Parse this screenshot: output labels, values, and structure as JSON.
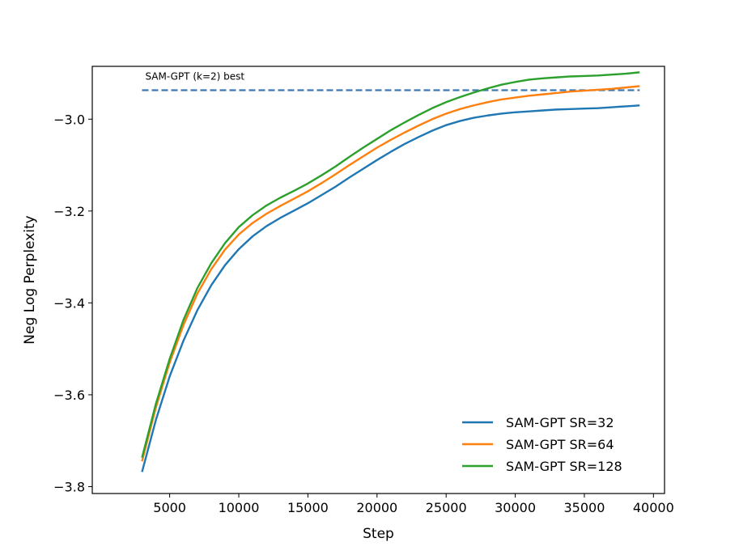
{
  "chart_data": {
    "type": "line",
    "title": "",
    "xlabel": "Step",
    "ylabel": "Neg Log Perplexity",
    "xlim": [
      -600,
      40800
    ],
    "ylim": [
      -3.815,
      -2.885
    ],
    "xticks": [
      5000,
      10000,
      15000,
      20000,
      25000,
      30000,
      35000,
      40000
    ],
    "xtick_labels": [
      "5000",
      "10000",
      "15000",
      "20000",
      "25000",
      "30000",
      "35000",
      "40000"
    ],
    "yticks": [
      -3.8,
      -3.6,
      -3.4,
      -3.2,
      -3.0
    ],
    "ytick_labels": [
      "−3.8",
      "−3.6",
      "−3.4",
      "−3.2",
      "−3.0"
    ],
    "grid": false,
    "legend_position": "lower-right",
    "reference_line": {
      "label": "SAM-GPT (k=2) best",
      "y": -2.937,
      "x_range": [
        3000,
        39000
      ],
      "color": "#3d78b0",
      "style": "dashed"
    },
    "series": [
      {
        "name": "SAM-GPT SR=32",
        "color": "#1f77b4",
        "x": [
          3000,
          4000,
          5000,
          6000,
          7000,
          8000,
          9000,
          10000,
          11000,
          12000,
          13000,
          14000,
          15000,
          16000,
          17000,
          18000,
          19000,
          20000,
          21000,
          22000,
          23000,
          24000,
          25000,
          26000,
          27000,
          28000,
          29000,
          30000,
          31000,
          32000,
          33000,
          34000,
          35000,
          36000,
          37000,
          38000,
          39000
        ],
        "y": [
          -3.768,
          -3.655,
          -3.56,
          -3.482,
          -3.416,
          -3.362,
          -3.318,
          -3.283,
          -3.255,
          -3.233,
          -3.215,
          -3.199,
          -3.183,
          -3.165,
          -3.147,
          -3.127,
          -3.108,
          -3.089,
          -3.071,
          -3.054,
          -3.039,
          -3.025,
          -3.013,
          -3.004,
          -2.997,
          -2.992,
          -2.988,
          -2.985,
          -2.983,
          -2.981,
          -2.979,
          -2.978,
          -2.977,
          -2.976,
          -2.974,
          -2.972,
          -2.97
        ]
      },
      {
        "name": "SAM-GPT SR=64",
        "color": "#ff7f0e",
        "x": [
          3000,
          4000,
          5000,
          6000,
          7000,
          8000,
          9000,
          10000,
          11000,
          12000,
          13000,
          14000,
          15000,
          16000,
          17000,
          18000,
          19000,
          20000,
          21000,
          22000,
          23000,
          24000,
          25000,
          26000,
          27000,
          28000,
          29000,
          30000,
          31000,
          32000,
          33000,
          34000,
          35000,
          36000,
          37000,
          38000,
          39000
        ],
        "y": [
          -3.745,
          -3.628,
          -3.53,
          -3.448,
          -3.38,
          -3.327,
          -3.284,
          -3.251,
          -3.226,
          -3.206,
          -3.189,
          -3.173,
          -3.157,
          -3.139,
          -3.12,
          -3.1,
          -3.081,
          -3.062,
          -3.045,
          -3.029,
          -3.014,
          -3.0,
          -2.988,
          -2.978,
          -2.97,
          -2.963,
          -2.957,
          -2.953,
          -2.949,
          -2.946,
          -2.943,
          -2.94,
          -2.938,
          -2.936,
          -2.934,
          -2.931,
          -2.928
        ]
      },
      {
        "name": "SAM-GPT SR=128",
        "color": "#2ca02c",
        "x": [
          3000,
          4000,
          5000,
          6000,
          7000,
          8000,
          9000,
          10000,
          11000,
          12000,
          13000,
          14000,
          15000,
          16000,
          17000,
          18000,
          19000,
          20000,
          21000,
          22000,
          23000,
          24000,
          25000,
          26000,
          27000,
          28000,
          29000,
          30000,
          31000,
          32000,
          33000,
          34000,
          35000,
          36000,
          37000,
          38000,
          39000
        ],
        "y": [
          -3.737,
          -3.62,
          -3.522,
          -3.437,
          -3.368,
          -3.314,
          -3.27,
          -3.235,
          -3.209,
          -3.188,
          -3.171,
          -3.156,
          -3.14,
          -3.122,
          -3.103,
          -3.082,
          -3.062,
          -3.043,
          -3.024,
          -3.007,
          -2.991,
          -2.976,
          -2.963,
          -2.952,
          -2.942,
          -2.933,
          -2.925,
          -2.919,
          -2.914,
          -2.911,
          -2.909,
          -2.907,
          -2.906,
          -2.905,
          -2.903,
          -2.901,
          -2.898
        ]
      }
    ]
  }
}
